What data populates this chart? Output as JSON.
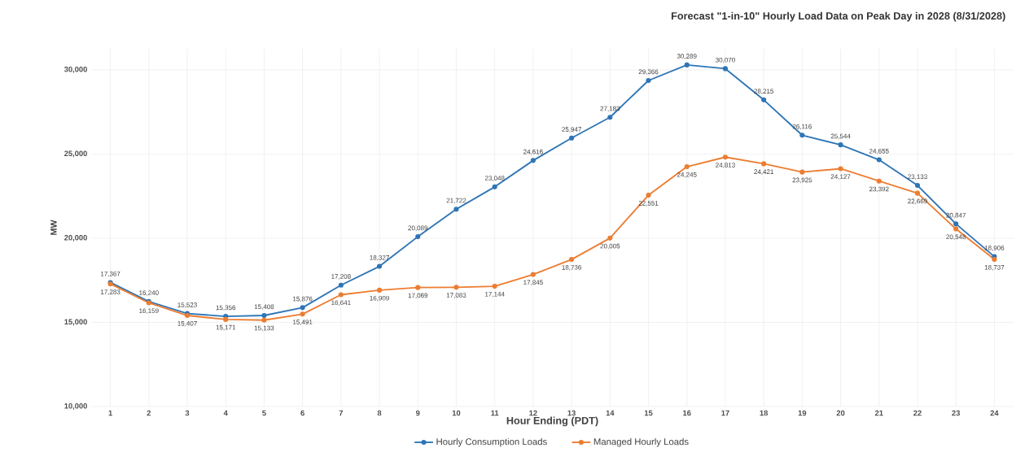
{
  "chart_data": {
    "type": "line",
    "title": "Forecast \"1-in-10\" Hourly Load Data on Peak Day in 2028 (8/31/2028)",
    "xlabel": "Hour Ending (PDT)",
    "ylabel": "MW",
    "categories": [
      "1",
      "2",
      "3",
      "4",
      "5",
      "6",
      "7",
      "8",
      "9",
      "10",
      "11",
      "12",
      "13",
      "14",
      "15",
      "16",
      "17",
      "18",
      "19",
      "20",
      "21",
      "22",
      "23",
      "24"
    ],
    "series": [
      {
        "name": "Hourly Consumption Loads",
        "color": "#2e75b6",
        "values": [
          17367,
          16240,
          15523,
          15356,
          15408,
          15876,
          17208,
          18327,
          20089,
          21722,
          23048,
          24616,
          25947,
          27183,
          29366,
          30289,
          30070,
          28215,
          26116,
          25544,
          24655,
          23133,
          20847,
          18906
        ],
        "value_labels": [
          "17,367",
          "16,240",
          "15,523",
          "15,356",
          "15,408",
          "15,876",
          "17,208",
          "18,327",
          "20,089",
          "21,722",
          "23,048",
          "24,616",
          "25,947",
          "27,183",
          "29,366",
          "30,289",
          "30,070",
          "28,215",
          "26,116",
          "25,544",
          "24,655",
          "23,133",
          "20,847",
          "18,906"
        ]
      },
      {
        "name": "Managed Hourly Loads",
        "color": "#ed7d31",
        "values": [
          17283,
          16159,
          15407,
          15171,
          15133,
          15491,
          16641,
          16909,
          17069,
          17083,
          17144,
          17845,
          18736,
          20005,
          22551,
          24245,
          24813,
          24421,
          23925,
          24127,
          23392,
          22669,
          20548,
          18737
        ],
        "value_labels": [
          "17,283",
          "16,159",
          "15,407",
          "15,171",
          "15,133",
          "15,491",
          "16,641",
          "16,909",
          "17,069",
          "17,083",
          "17,144",
          "17,845",
          "18,736",
          "20,005",
          "22,551",
          "24,245",
          "24,813",
          "24,421",
          "23,925",
          "24,127",
          "23,392",
          "22,669",
          "20,548",
          "18,737"
        ]
      }
    ],
    "ylim": [
      10000,
      31250
    ],
    "yticks": [
      {
        "value": 10000,
        "label": "10,000"
      },
      {
        "value": 15000,
        "label": "15,000"
      },
      {
        "value": 20000,
        "label": "20,000"
      },
      {
        "value": 25000,
        "label": "25,000"
      },
      {
        "value": 30000,
        "label": "30,000"
      }
    ],
    "grid": true,
    "legend": "bottom",
    "marker": "circle",
    "line_style": "solid"
  }
}
